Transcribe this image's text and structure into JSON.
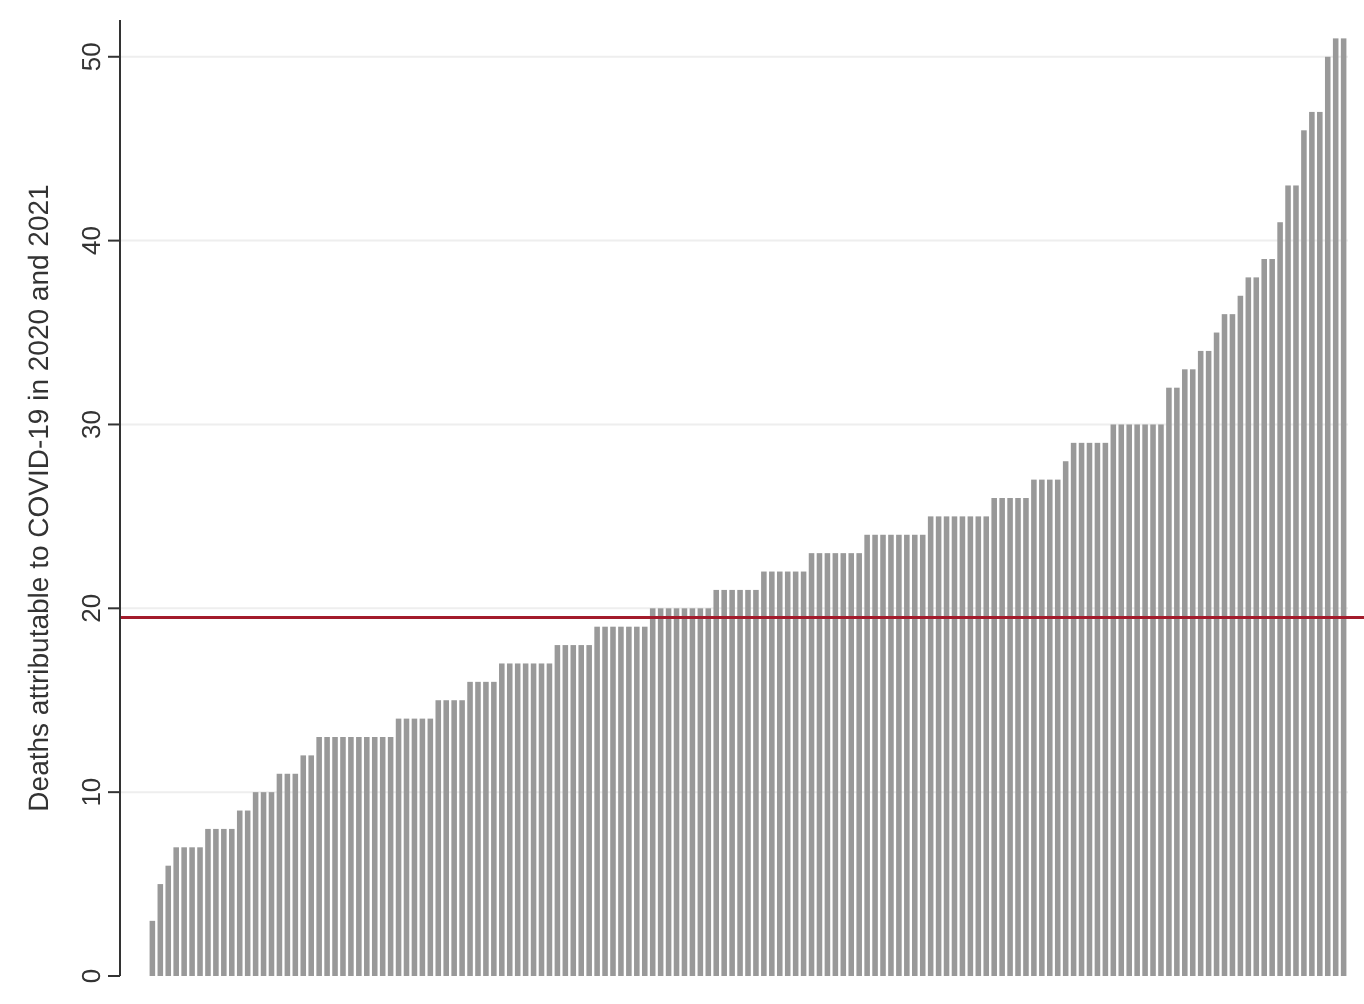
{
  "chart_data": {
    "type": "bar",
    "ylabel": "Deaths attributable to COVID-19 in 2020 and 2021",
    "categories": [
      null,
      null,
      null,
      null,
      null,
      null,
      null,
      null,
      null,
      null,
      null,
      null,
      null,
      null,
      null,
      null,
      null,
      null,
      null,
      null,
      null,
      null,
      null,
      null,
      null,
      null,
      null,
      null,
      null,
      null,
      null,
      null,
      null,
      null,
      null,
      null,
      null,
      null,
      null,
      null,
      null,
      null,
      null,
      null,
      null,
      null,
      null,
      null,
      null,
      null,
      null,
      null,
      null,
      null,
      null,
      null,
      null,
      null,
      null,
      null,
      null,
      null,
      null,
      null,
      null,
      null,
      null,
      null,
      null,
      null,
      null,
      null,
      null,
      null,
      null,
      null,
      null,
      null,
      null,
      null,
      null,
      null,
      null,
      null,
      null,
      null,
      null,
      null,
      null,
      null,
      null,
      null,
      null,
      null,
      null,
      null,
      null,
      null,
      null,
      null,
      null,
      null,
      null,
      null,
      null,
      null,
      null,
      null,
      null,
      null,
      null,
      null,
      null,
      null,
      null,
      null,
      null,
      null,
      null,
      null,
      null,
      null,
      null,
      null,
      null,
      null,
      null,
      null,
      null,
      null,
      null,
      null,
      null,
      null,
      null,
      null,
      null,
      null,
      null,
      null,
      null,
      null,
      null,
      null,
      null,
      null,
      null,
      null,
      null,
      null,
      null
    ],
    "values": [
      3,
      5,
      6,
      7,
      7,
      7,
      7,
      8,
      8,
      8,
      8,
      9,
      9,
      10,
      10,
      10,
      11,
      11,
      11,
      12,
      12,
      13,
      13,
      13,
      13,
      13,
      13,
      13,
      13,
      13,
      13,
      14,
      14,
      14,
      14,
      14,
      15,
      15,
      15,
      15,
      16,
      16,
      16,
      16,
      17,
      17,
      17,
      17,
      17,
      17,
      17,
      18,
      18,
      18,
      18,
      18,
      19,
      19,
      19,
      19,
      19,
      19,
      19,
      20,
      20,
      20,
      20,
      20,
      20,
      20,
      20,
      21,
      21,
      21,
      21,
      21,
      21,
      22,
      22,
      22,
      22,
      22,
      22,
      23,
      23,
      23,
      23,
      23,
      23,
      23,
      24,
      24,
      24,
      24,
      24,
      24,
      24,
      24,
      25,
      25,
      25,
      25,
      25,
      25,
      25,
      25,
      26,
      26,
      26,
      26,
      26,
      27,
      27,
      27,
      27,
      28,
      29,
      29,
      29,
      29,
      29,
      30,
      30,
      30,
      30,
      30,
      30,
      30,
      32,
      32,
      33,
      33,
      34,
      34,
      35,
      36,
      36,
      37,
      38,
      38,
      39,
      39,
      41,
      43,
      43,
      46,
      47,
      47,
      50,
      51,
      51
    ],
    "color": "#999999",
    "ylim": [
      0,
      52
    ],
    "yticks": [
      0,
      10,
      20,
      30,
      40,
      50
    ],
    "grid": "y",
    "ref_lines": [
      {
        "axis": "y",
        "value": 19.5,
        "color": "#a31b2b"
      }
    ]
  }
}
